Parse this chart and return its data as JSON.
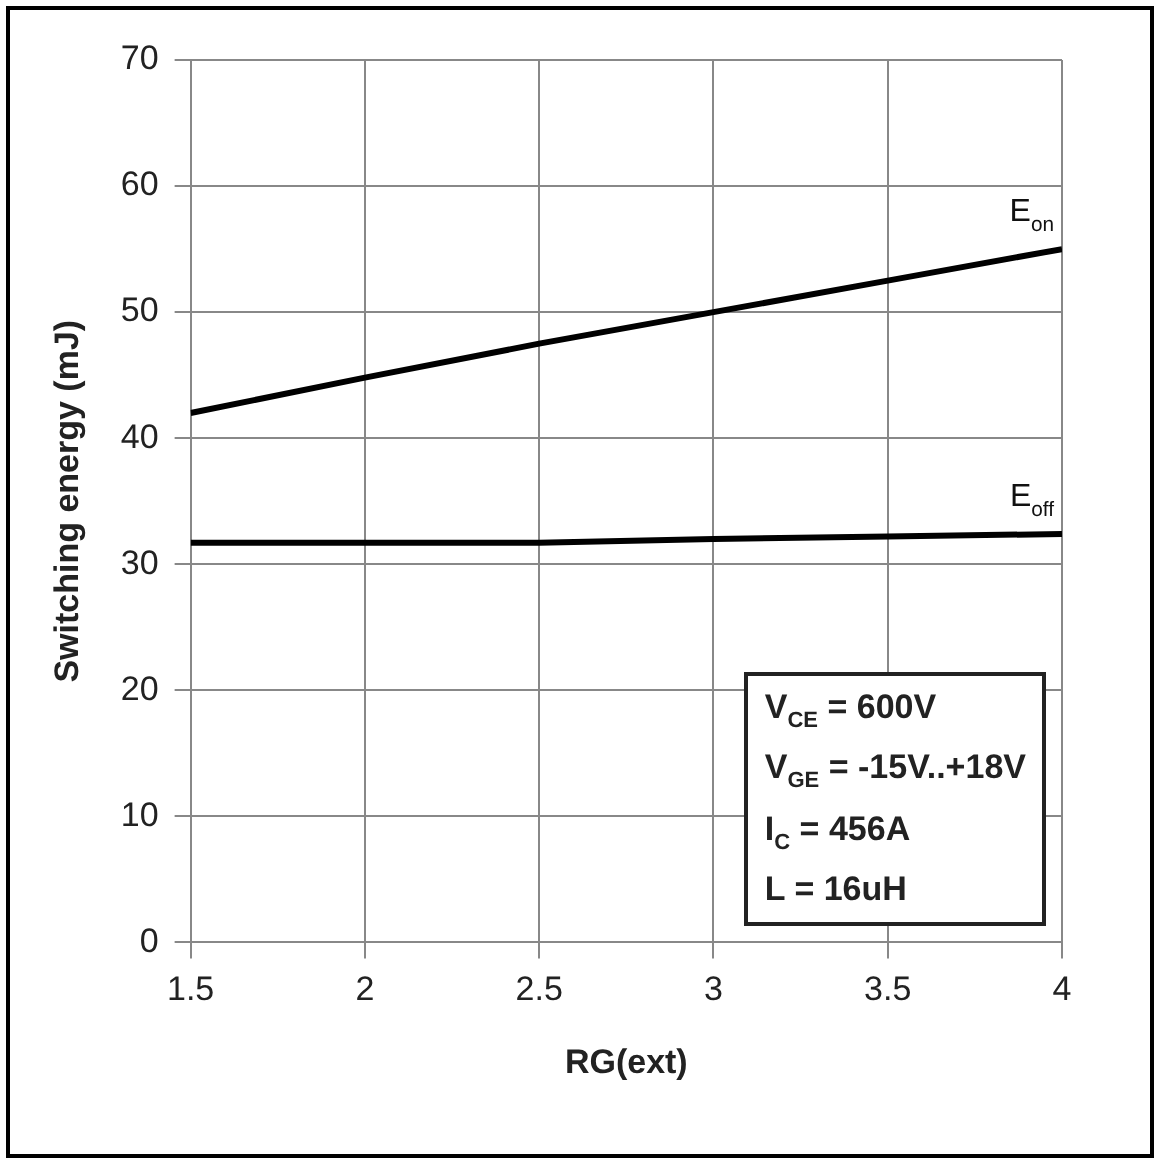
{
  "chart_data": {
    "type": "line",
    "xlabel": "RG(ext)",
    "ylabel": "Switching energy (mJ)",
    "x": [
      1.5,
      2,
      2.5,
      3,
      3.5,
      4
    ],
    "series": [
      {
        "name": "E$_{on}$",
        "color": "#000000",
        "values": [
          42,
          44.8,
          47.5,
          50,
          52.5,
          55
        ]
      },
      {
        "name": "E$_{off}$",
        "color": "#000000",
        "values": [
          31.7,
          31.7,
          31.7,
          32,
          32.2,
          32.4
        ]
      }
    ],
    "xlim": [
      1.5,
      4
    ],
    "xticks": [
      1.5,
      2,
      2.5,
      3,
      3.5,
      4
    ],
    "ylim": [
      0,
      70
    ],
    "yticks": [
      0,
      10,
      20,
      30,
      40,
      50,
      60,
      70
    ],
    "grid": true,
    "legend": false,
    "marker": "none",
    "line_style": "solid",
    "annotations": [
      "V$_{CE}$ = 600V",
      "V$_{GE}$ = -15V..+18V",
      "I$_{C}$ = 456A",
      "L = 16uH"
    ]
  }
}
